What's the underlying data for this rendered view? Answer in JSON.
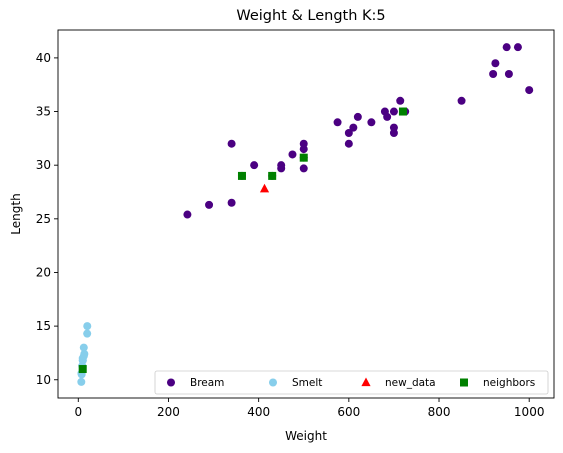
{
  "chart_data": {
    "type": "scatter",
    "title": "Weight & Length K:5",
    "xlabel": "Weight",
    "ylabel": "Length",
    "xlim": [
      -45,
      1055
    ],
    "ylim": [
      8.3,
      42.6
    ],
    "xticks": [
      0,
      200,
      400,
      600,
      800,
      1000
    ],
    "yticks": [
      10,
      15,
      20,
      25,
      30,
      35,
      40
    ],
    "xtick_labels": [
      "0",
      "200",
      "400",
      "600",
      "800",
      "1000"
    ],
    "ytick_labels": [
      "10",
      "15",
      "20",
      "25",
      "30",
      "35",
      "40"
    ],
    "grid": false,
    "legend": {
      "placement": "lower-right",
      "columns": 4
    },
    "series": [
      {
        "name": "Bream",
        "marker": "circle",
        "color": "#4b0082",
        "points": [
          [
            242,
            25.4
          ],
          [
            290,
            26.3
          ],
          [
            340,
            26.5
          ],
          [
            363,
            29.0
          ],
          [
            430,
            29.0
          ],
          [
            450,
            29.7
          ],
          [
            500,
            29.7
          ],
          [
            390,
            30.0
          ],
          [
            450,
            30.0
          ],
          [
            500,
            30.7
          ],
          [
            475,
            31.0
          ],
          [
            500,
            31.5
          ],
          [
            500,
            32.0
          ],
          [
            340,
            32.0
          ],
          [
            600,
            32.0
          ],
          [
            600,
            33.0
          ],
          [
            700,
            33.0
          ],
          [
            700,
            33.5
          ],
          [
            610,
            33.5
          ],
          [
            650,
            34.0
          ],
          [
            575,
            34.0
          ],
          [
            685,
            34.5
          ],
          [
            620,
            34.5
          ],
          [
            680,
            35.0
          ],
          [
            700,
            35.0
          ],
          [
            725,
            35.0
          ],
          [
            720,
            35.0
          ],
          [
            714,
            36.0
          ],
          [
            850,
            36.0
          ],
          [
            1000,
            37.0
          ],
          [
            920,
            38.5
          ],
          [
            955,
            38.5
          ],
          [
            925,
            39.5
          ],
          [
            975,
            41.0
          ],
          [
            950,
            41.0
          ]
        ]
      },
      {
        "name": "Smelt",
        "marker": "circle",
        "color": "#87ceeb",
        "points": [
          [
            6.7,
            9.8
          ],
          [
            7.5,
            10.5
          ],
          [
            7.0,
            10.6
          ],
          [
            9.7,
            11.0
          ],
          [
            9.8,
            11.2
          ],
          [
            8.7,
            11.3
          ],
          [
            10.0,
            11.8
          ],
          [
            9.9,
            11.8
          ],
          [
            9.8,
            12.0
          ],
          [
            12.2,
            12.2
          ],
          [
            13.4,
            12.4
          ],
          [
            12.2,
            13.0
          ],
          [
            19.7,
            14.3
          ],
          [
            19.9,
            15.0
          ]
        ]
      },
      {
        "name": "new_data",
        "marker": "triangle",
        "color": "#ff0000",
        "points": [
          [
            413,
            27.8
          ]
        ]
      },
      {
        "name": "neighbors",
        "marker": "square",
        "color": "#008000",
        "points": [
          [
            363,
            29.0
          ],
          [
            430,
            29.0
          ],
          [
            500,
            30.7
          ],
          [
            720,
            35.0
          ],
          [
            9.8,
            11.0
          ]
        ]
      }
    ]
  }
}
